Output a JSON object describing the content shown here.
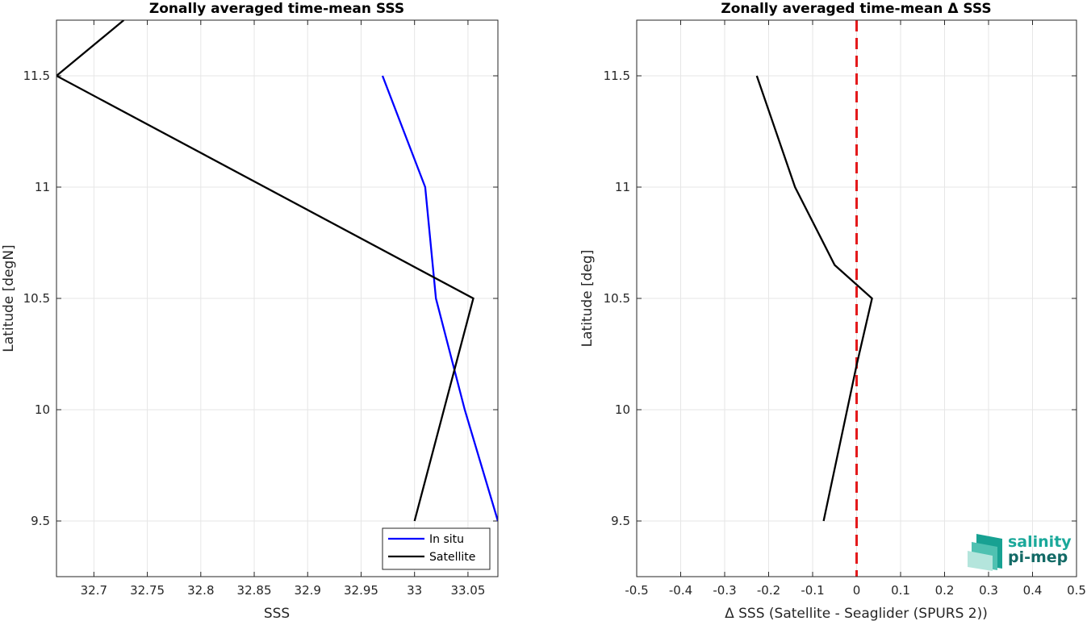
{
  "chart_data": [
    {
      "type": "line",
      "title": "Zonally averaged time-mean SSS",
      "xlabel": "SSS",
      "ylabel": "Latitude [degN]",
      "xlim": [
        32.665,
        33.078
      ],
      "ylim": [
        9.25,
        11.75
      ],
      "x_ticks": [
        "32.7",
        "32.75",
        "32.8",
        "32.85",
        "32.9",
        "32.95",
        "33",
        "33.05"
      ],
      "x_tick_values": [
        32.7,
        32.75,
        32.8,
        32.85,
        32.9,
        32.95,
        33.0,
        33.05
      ],
      "y_ticks": [
        "9.5",
        "10",
        "10.5",
        "11",
        "11.5"
      ],
      "y_tick_values": [
        9.5,
        10.0,
        10.5,
        11.0,
        11.5
      ],
      "grid": true,
      "legend_position": "bottom-right",
      "series": [
        {
          "name": "In situ",
          "color": "#0000ff",
          "points": [
            [
              32.97,
              11.5
            ],
            [
              33.01,
              11.0
            ],
            [
              33.02,
              10.5
            ],
            [
              33.047,
              10.0
            ],
            [
              33.078,
              9.5
            ]
          ]
        },
        {
          "name": "Satellite",
          "color": "#000000",
          "points": [
            [
              32.728,
              11.75
            ],
            [
              32.665,
              11.5
            ],
            [
              33.055,
              10.5
            ],
            [
              33.0,
              9.5
            ]
          ]
        }
      ]
    },
    {
      "type": "line",
      "title": "Zonally averaged time-mean Δ SSS",
      "xlabel": "Δ SSS (Satellite - Seaglider (SPURS 2))",
      "ylabel": "Latitude [deg]",
      "xlim": [
        -0.5,
        0.5
      ],
      "ylim": [
        9.25,
        11.75
      ],
      "x_ticks": [
        "-0.5",
        "-0.4",
        "-0.3",
        "-0.2",
        "-0.1",
        "0",
        "0.1",
        "0.2",
        "0.3",
        "0.4",
        "0.5"
      ],
      "x_tick_values": [
        -0.5,
        -0.4,
        -0.3,
        -0.2,
        -0.1,
        0,
        0.1,
        0.2,
        0.3,
        0.4,
        0.5
      ],
      "y_ticks": [
        "9.5",
        "10",
        "10.5",
        "11",
        "11.5"
      ],
      "y_tick_values": [
        9.5,
        10.0,
        10.5,
        11.0,
        11.5
      ],
      "grid": true,
      "reference_line": {
        "x": 0,
        "color": "#e41a1c",
        "style": "dashed"
      },
      "series": [
        {
          "color": "#000000",
          "points": [
            [
              -0.227,
              11.5
            ],
            [
              -0.14,
              11.0
            ],
            [
              -0.05,
              10.65
            ],
            [
              0.035,
              10.5
            ],
            [
              0.0,
              10.2
            ],
            [
              -0.075,
              9.5
            ]
          ]
        }
      ]
    }
  ],
  "logo": {
    "line1": "salinity",
    "line2": "pi-mep",
    "color1": "#1aa89a",
    "color2": "#136a66"
  }
}
